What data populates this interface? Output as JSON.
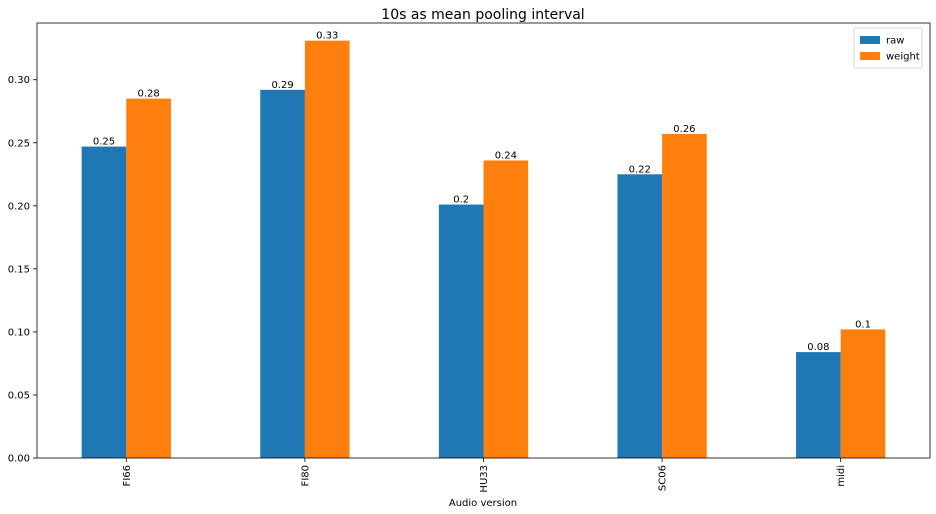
{
  "chart_data": {
    "type": "bar",
    "title": "10s as mean pooling interval",
    "xlabel": "Audio version",
    "ylabel": "",
    "categories": [
      "FI66",
      "FI80",
      "HU33",
      "SC06",
      "midi"
    ],
    "series": [
      {
        "name": "raw",
        "color": "#1f77b4",
        "values": [
          0.247,
          0.292,
          0.201,
          0.225,
          0.084
        ],
        "labels": [
          "0.25",
          "0.29",
          "0.2",
          "0.22",
          "0.08"
        ]
      },
      {
        "name": "weight",
        "color": "#ff7f0e",
        "values": [
          0.285,
          0.331,
          0.236,
          0.257,
          0.102
        ],
        "labels": [
          "0.28",
          "0.33",
          "0.24",
          "0.26",
          "0.1"
        ]
      }
    ],
    "ylim": [
      0,
      0.345
    ],
    "yticks": [
      0.0,
      0.05,
      0.1,
      0.15,
      0.2,
      0.25,
      0.3
    ],
    "ytick_labels": [
      "0.00",
      "0.05",
      "0.10",
      "0.15",
      "0.20",
      "0.25",
      "0.30"
    ],
    "grid": false,
    "legend_position": "top-right"
  }
}
